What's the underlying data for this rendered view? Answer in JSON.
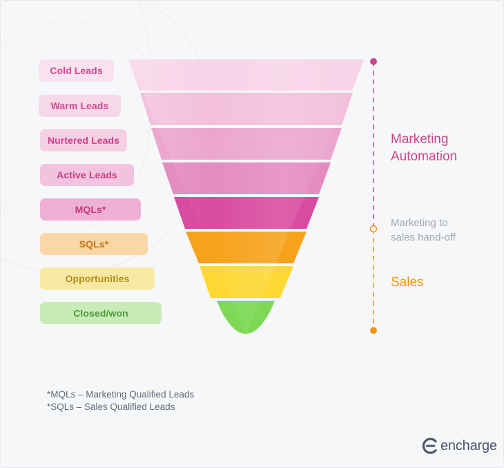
{
  "stages": [
    {
      "label": "Cold Leads",
      "pill_bg": "#f9e2ef",
      "pill_fg": "#d0488f",
      "band": "#f7d4e8"
    },
    {
      "label": "Warm Leads",
      "pill_bg": "#f7d8e9",
      "pill_fg": "#d0488f",
      "band": "#f3c0dc"
    },
    {
      "label": "Nurtered Leads",
      "pill_bg": "#f5cfe4",
      "pill_fg": "#cc4189",
      "band": "#eba6cf"
    },
    {
      "label": "Active Leads",
      "pill_bg": "#f2c3de",
      "pill_fg": "#c83c84",
      "band": "#e48bc0"
    },
    {
      "label": "MQLs*",
      "pill_bg": "#eeb0d4",
      "pill_fg": "#c33a80",
      "band": "#d94ba0"
    },
    {
      "label": "SQLs*",
      "pill_bg": "#fbd7a8",
      "pill_fg": "#c7730f",
      "band": "#f7a21b"
    },
    {
      "label": "Opportunities",
      "pill_bg": "#f7e9a4",
      "pill_fg": "#b48d16",
      "band": "#fdd835"
    },
    {
      "label": "Closed/won",
      "pill_bg": "#c9ebb8",
      "pill_fg": "#4e9b3a",
      "band": "#7ed957"
    }
  ],
  "phases": {
    "marketing_automation": {
      "line1": "Marketing",
      "line2": "Automation",
      "color": "#c9478f"
    },
    "handoff": {
      "line1": "Marketing to",
      "line2": "sales hand-off",
      "color": "#a0a7b2"
    },
    "sales": {
      "label": "Sales",
      "color": "#f29415"
    }
  },
  "footnotes": {
    "mql": "*MQLs – Marketing Qualified Leads",
    "sql": "*SQLs – Sales Qualified Leads"
  },
  "brand": {
    "name": "encharge",
    "color": "#4a5568"
  }
}
